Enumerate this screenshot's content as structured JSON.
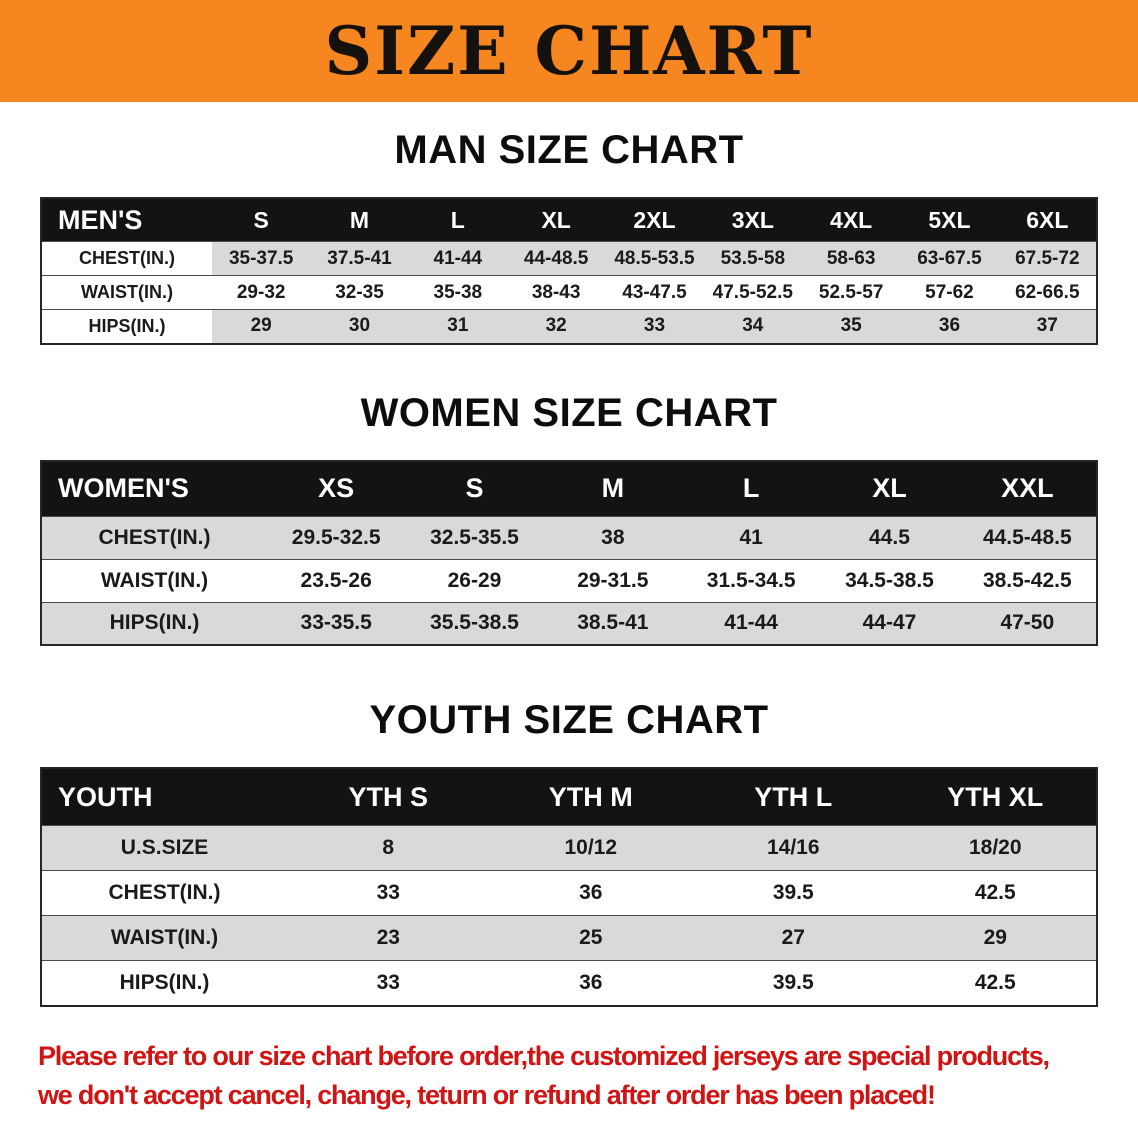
{
  "banner": {
    "title": "SIZE CHART"
  },
  "colors": {
    "banner_orange": "#f6861f",
    "header_black": "#131313",
    "stripe_gray": "#d9d9d9",
    "disclaimer_red": "#d01414"
  },
  "sections": [
    {
      "heading": "MAN SIZE CHART",
      "table": {
        "header": [
          "MEN'S",
          "S",
          "M",
          "L",
          "XL",
          "2XL",
          "3XL",
          "4XL",
          "5XL",
          "6XL"
        ],
        "rows": [
          [
            "CHEST(IN.)",
            "35-37.5",
            "37.5-41",
            "41-44",
            "44-48.5",
            "48.5-53.5",
            "53.5-58",
            "58-63",
            "63-67.5",
            "67.5-72"
          ],
          [
            "WAIST(IN.)",
            "29-32",
            "32-35",
            "35-38",
            "38-43",
            "43-47.5",
            "47.5-52.5",
            "52.5-57",
            "57-62",
            "62-66.5"
          ],
          [
            "HIPS(IN.)",
            "29",
            "30",
            "31",
            "32",
            "33",
            "34",
            "35",
            "36",
            "37"
          ]
        ]
      }
    },
    {
      "heading": "WOMEN SIZE CHART",
      "table": {
        "header": [
          "WOMEN'S",
          "XS",
          "S",
          "M",
          "L",
          "XL",
          "XXL"
        ],
        "rows": [
          [
            "CHEST(IN.)",
            "29.5-32.5",
            "32.5-35.5",
            "38",
            "41",
            "44.5",
            "44.5-48.5"
          ],
          [
            "WAIST(IN.)",
            "23.5-26",
            "26-29",
            "29-31.5",
            "31.5-34.5",
            "34.5-38.5",
            "38.5-42.5"
          ],
          [
            "HIPS(IN.)",
            "33-35.5",
            "35.5-38.5",
            "38.5-41",
            "41-44",
            "44-47",
            "47-50"
          ]
        ]
      }
    },
    {
      "heading": "YOUTH SIZE CHART",
      "table": {
        "header": [
          "YOUTH",
          "YTH S",
          "YTH M",
          "YTH L",
          "YTH XL"
        ],
        "rows": [
          [
            "U.S.SIZE",
            "8",
            "10/12",
            "14/16",
            "18/20"
          ],
          [
            "CHEST(IN.)",
            "33",
            "36",
            "39.5",
            "42.5"
          ],
          [
            "WAIST(IN.)",
            "23",
            "25",
            "27",
            "29"
          ],
          [
            "HIPS(IN.)",
            "33",
            "36",
            "39.5",
            "42.5"
          ]
        ]
      }
    }
  ],
  "disclaimer": {
    "line1": "Please refer to our size chart before order,the customized jerseys are special products,",
    "line2": "we don't accept cancel, change, teturn or refund after order has been placed!"
  }
}
